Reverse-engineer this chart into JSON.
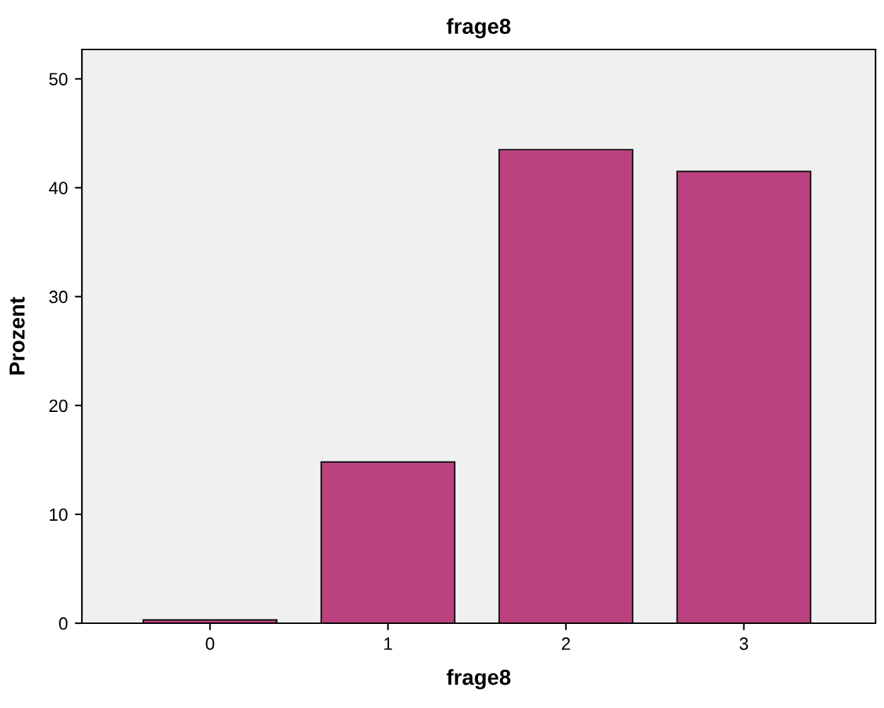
{
  "chart_data": {
    "type": "bar",
    "title": "frage8",
    "xlabel": "frage8",
    "ylabel": "Prozent",
    "categories": [
      "0",
      "1",
      "2",
      "3"
    ],
    "values": [
      0.3,
      14.8,
      43.5,
      41.5
    ],
    "color": "#bc417f",
    "ylim": [
      0,
      52.7
    ],
    "yticks": [
      0,
      10,
      20,
      30,
      40,
      50
    ],
    "grid": false
  }
}
